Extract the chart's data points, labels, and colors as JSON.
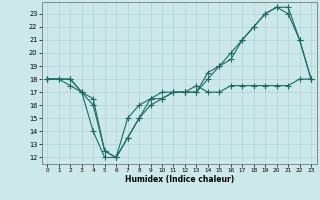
{
  "xlabel": "Humidex (Indice chaleur)",
  "background_color": "#cce8ea",
  "line_color": "#1a6b62",
  "grid_color": "#aed4d6",
  "x_ticks": [
    0,
    1,
    2,
    3,
    4,
    5,
    6,
    7,
    8,
    9,
    10,
    11,
    12,
    13,
    14,
    15,
    16,
    17,
    18,
    19,
    20,
    21,
    22,
    23
  ],
  "y_ticks": [
    12,
    13,
    14,
    15,
    16,
    17,
    18,
    19,
    20,
    21,
    22,
    23
  ],
  "xlim": [
    -0.5,
    23.5
  ],
  "ylim": [
    11.5,
    23.9
  ],
  "line1_x": [
    0,
    1,
    2,
    3,
    4,
    5,
    6,
    7,
    8,
    9,
    10,
    11,
    12,
    13,
    14,
    15,
    16,
    17,
    18,
    19,
    20,
    21,
    22,
    23
  ],
  "line1_y": [
    18,
    18,
    18,
    17,
    16.5,
    12.5,
    12,
    13.5,
    15,
    16.5,
    16.5,
    17,
    17,
    17.5,
    17,
    17,
    17.5,
    17.5,
    17.5,
    17.5,
    17.5,
    17.5,
    18,
    18
  ],
  "line2_x": [
    0,
    1,
    2,
    3,
    4,
    5,
    6,
    7,
    8,
    9,
    10,
    11,
    12,
    13,
    14,
    15,
    16,
    17,
    18,
    19,
    20,
    21,
    22,
    23
  ],
  "line2_y": [
    18,
    18,
    17.5,
    17,
    14,
    12,
    12,
    15,
    16,
    16.5,
    17,
    17,
    17,
    17,
    18.5,
    19,
    19.5,
    21,
    22,
    23,
    23.5,
    23,
    21,
    18
  ],
  "line3_x": [
    0,
    2,
    3,
    4,
    5,
    6,
    7,
    8,
    9,
    10,
    11,
    12,
    13,
    14,
    15,
    16,
    17,
    18,
    19,
    20,
    21,
    22,
    23
  ],
  "line3_y": [
    18,
    18,
    17,
    16,
    12.5,
    12,
    13.5,
    15,
    16,
    16.5,
    17,
    17,
    17,
    18,
    19,
    20,
    21,
    22,
    23,
    23.5,
    23.5,
    21,
    18
  ]
}
